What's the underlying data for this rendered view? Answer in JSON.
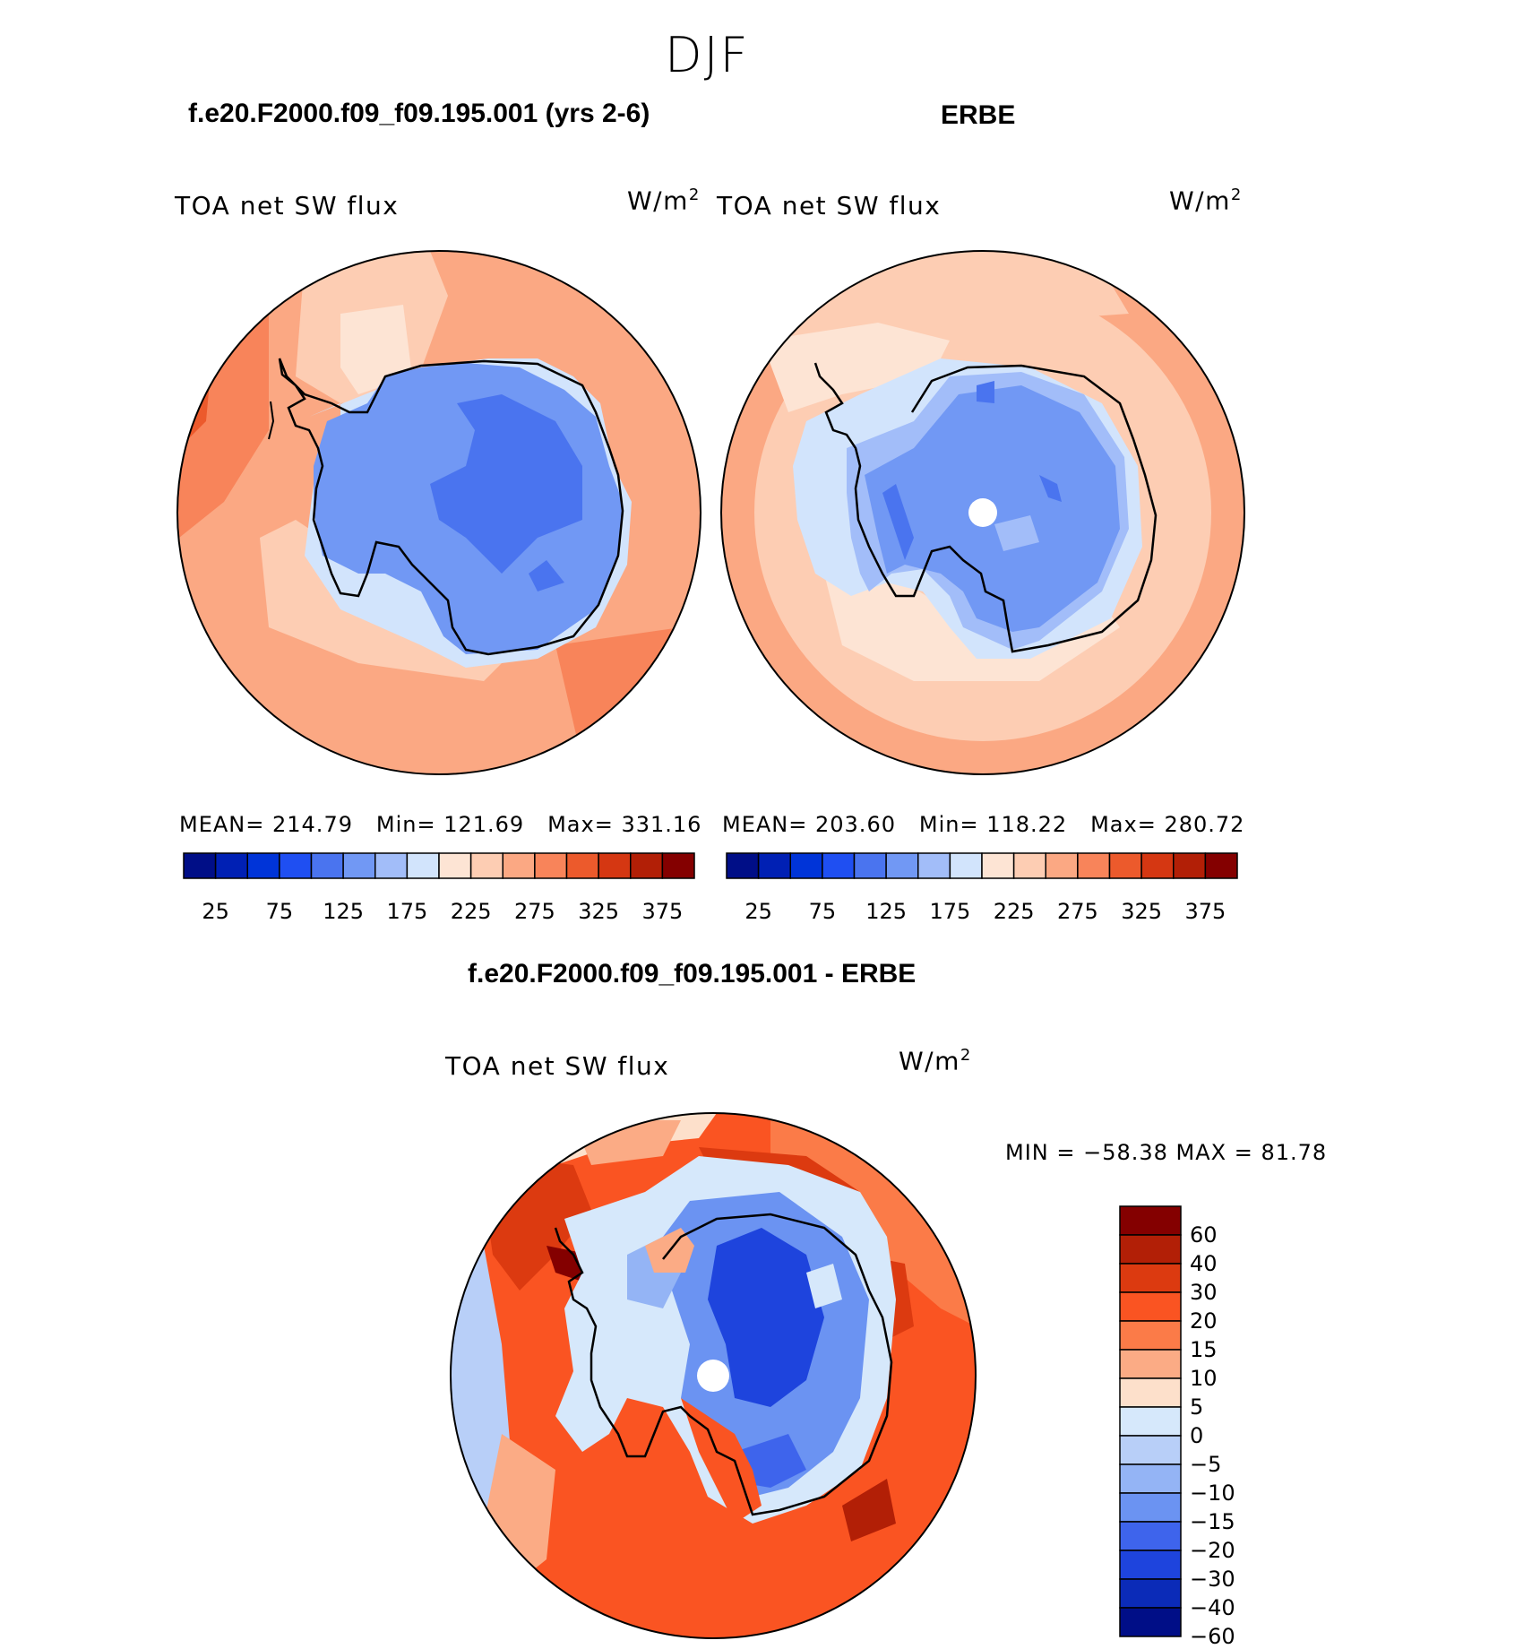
{
  "figure": {
    "season": "DJF",
    "panels": [
      {
        "id": "model",
        "title": "f.e20.F2000.f09_f09.195.001 (yrs 2-6)",
        "variable": "TOA net SW flux",
        "units": "W/m",
        "units_exp": "2",
        "stats": {
          "mean_label": "MEAN=",
          "mean": "214.79",
          "min_label": "Min=",
          "min": "121.69",
          "max_label": "Max=",
          "max": "331.16"
        }
      },
      {
        "id": "obs",
        "title": "ERBE",
        "variable": "TOA net SW flux",
        "units": "W/m",
        "units_exp": "2",
        "stats": {
          "mean_label": "MEAN=",
          "mean": "203.60",
          "min_label": "Min=",
          "min": "118.22",
          "max_label": "Max=",
          "max": "280.72"
        }
      },
      {
        "id": "diff",
        "title": "f.e20.F2000.f09_f09.195.001 - ERBE",
        "variable": "TOA net SW flux",
        "units": "W/m",
        "units_exp": "2",
        "stats": {
          "text": "MIN = −58.38 MAX =   81.78"
        }
      }
    ]
  },
  "colorbars": {
    "absolute": {
      "colors": [
        "#000e87",
        "#0020b4",
        "#0034d8",
        "#1f4ff2",
        "#4a74ef",
        "#7198f4",
        "#a2bdf9",
        "#d2e4fc",
        "#fde4d4",
        "#fdcdb3",
        "#fba883",
        "#f8845a",
        "#ec5a2c",
        "#d53712",
        "#b21f06",
        "#840000"
      ],
      "tick_labels": [
        "25",
        "75",
        "125",
        "175",
        "225",
        "275",
        "325",
        "375"
      ]
    },
    "difference": {
      "colors": [
        "#840000",
        "#b21f06",
        "#dc3a10",
        "#fa5422",
        "#fb7b48",
        "#fbab85",
        "#fde0cb",
        "#d6e8fb",
        "#b8cff8",
        "#94b4f5",
        "#6b93f2",
        "#3e64ec",
        "#1e44dd",
        "#0b2bb8",
        "#000e87"
      ],
      "tick_labels": [
        "60",
        "40",
        "30",
        "20",
        "15",
        "10",
        "5",
        "0",
        "−5",
        "−10",
        "−15",
        "−20",
        "−30",
        "−40",
        "−60"
      ]
    }
  }
}
